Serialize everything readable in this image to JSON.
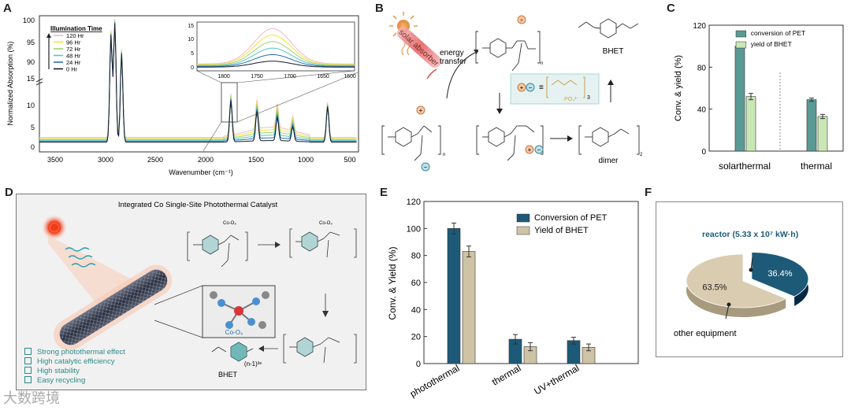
{
  "panels": {
    "A": "A",
    "B": "B",
    "C": "C",
    "D": "D",
    "E": "E",
    "F": "F"
  },
  "panelA": {
    "ylabel": "Normalized Absorption (%)",
    "xlabel": "Wavenumber (cm⁻¹)",
    "xticks": [
      "3500",
      "3000",
      "2500",
      "2000",
      "1500",
      "1000",
      "500"
    ],
    "yticks_low": [
      "0",
      "5",
      "10",
      "15"
    ],
    "yticks_high": [
      "90",
      "95",
      "100"
    ],
    "legend_title": "Illumination Time",
    "legend": [
      {
        "label": "120 Hr",
        "color": "#f2b8c6"
      },
      {
        "label": "96 Hr",
        "color": "#f5e23c"
      },
      {
        "label": "72 Hr",
        "color": "#9ed36a"
      },
      {
        "label": "48 Hr",
        "color": "#55c6c9"
      },
      {
        "label": "24 Hr",
        "color": "#2f6fb0"
      },
      {
        "label": "0 Hr",
        "color": "#1a1a2e"
      }
    ],
    "inset_xticks": [
      "1800",
      "1750",
      "1700",
      "1650",
      "1600"
    ],
    "inset_yticks": [
      "0",
      "5",
      "10",
      "15"
    ]
  },
  "panelB": {
    "solar_absorber": "solar absorber",
    "energy_transfer": "energy\ntransfer",
    "bhet": "BHET",
    "dimer": "dimer",
    "po4": "PO₄³⁻",
    "sub3": "3",
    "sub2": "2",
    "subn": "n"
  },
  "panelD": {
    "title": "Integrated Co Single-Site Photothermal Catalyst",
    "co_label": "Co-O₄",
    "co_o3": "Co-O₃",
    "bhet": "BHET",
    "n1": "(n-1)³ˣ",
    "bullets": [
      "Strong photothermal effect",
      "High catalytic efficiency",
      "High stability",
      "Easy recycling"
    ]
  },
  "panelF": {
    "reactor_label": "reactor (5.33 x 10⁷ kW·h)",
    "other_label": "other equipment"
  },
  "watermark": "大数跨境",
  "chart_data": [
    {
      "panel": "C",
      "type": "bar",
      "categories": [
        "solarthermal",
        "thermal"
      ],
      "series": [
        {
          "name": "conversion of PET",
          "values": [
            100,
            49
          ],
          "errors": [
            1,
            1.5
          ],
          "color": "#5a9a95"
        },
        {
          "name": "yield of BHET",
          "values": [
            52,
            33
          ],
          "errors": [
            3,
            2
          ],
          "color": "#c9e6b5"
        }
      ],
      "ylabel": "Conv. & yield (%)",
      "ylim": [
        0,
        120
      ],
      "yticks": [
        0,
        40,
        80,
        120
      ],
      "legend_position": "top-right"
    },
    {
      "panel": "E",
      "type": "bar",
      "categories": [
        "photothermal",
        "thermal",
        "UV+thermal"
      ],
      "series": [
        {
          "name": "Conversion of PET",
          "values": [
            100,
            18,
            17
          ],
          "errors": [
            4,
            3.5,
            2.5
          ],
          "color": "#1c5a78"
        },
        {
          "name": "Yield of BHET",
          "values": [
            83,
            12.5,
            12
          ],
          "errors": [
            4,
            3,
            2.5
          ],
          "color": "#cfc3a6"
        }
      ],
      "ylabel": "Conv. & Yield (%)",
      "ylim": [
        0,
        120
      ],
      "yticks": [
        0,
        20,
        40,
        60,
        80,
        100,
        120
      ],
      "legend_position": "top-right"
    },
    {
      "panel": "F",
      "type": "pie",
      "labels": [
        "reactor",
        "other equipment"
      ],
      "values": [
        36.4,
        63.5
      ],
      "value_labels": [
        "36.4%",
        "63.5%"
      ],
      "colors": [
        "#1c5a78",
        "#d9ccb0"
      ]
    }
  ]
}
